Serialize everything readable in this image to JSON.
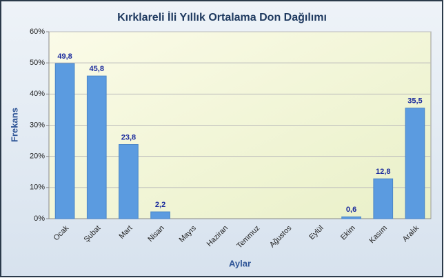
{
  "chart_data": {
    "type": "bar",
    "title": "Kırklareli İli Yıllık Ortalama Don Dağılımı",
    "x_label": "Aylar",
    "y_label": "Frekans",
    "categories": [
      "Ocak",
      "Şubat",
      "Mart",
      "Nisan",
      "Mayıs",
      "Haziran",
      "Temmuz",
      "Ağustos",
      "Eylül",
      "Ekim",
      "Kasım",
      "Aralık"
    ],
    "values": [
      49.8,
      45.8,
      23.8,
      2.2,
      null,
      null,
      null,
      null,
      null,
      0.6,
      12.8,
      35.5
    ],
    "value_labels": [
      "49,8",
      "45,8",
      "23,8",
      "2,2",
      null,
      null,
      null,
      null,
      null,
      "0,6",
      "12,8",
      "35,5"
    ],
    "color": "#5b9be0",
    "ylim": [
      0,
      60
    ],
    "yticks": [
      {
        "value": 0,
        "label": "0%"
      },
      {
        "value": 10,
        "label": "10%"
      },
      {
        "value": 20,
        "label": "20%"
      },
      {
        "value": 30,
        "label": "30%"
      },
      {
        "value": 40,
        "label": "40%"
      },
      {
        "value": 50,
        "label": "50%"
      },
      {
        "value": 60,
        "label": "60%"
      }
    ],
    "grid": true
  }
}
